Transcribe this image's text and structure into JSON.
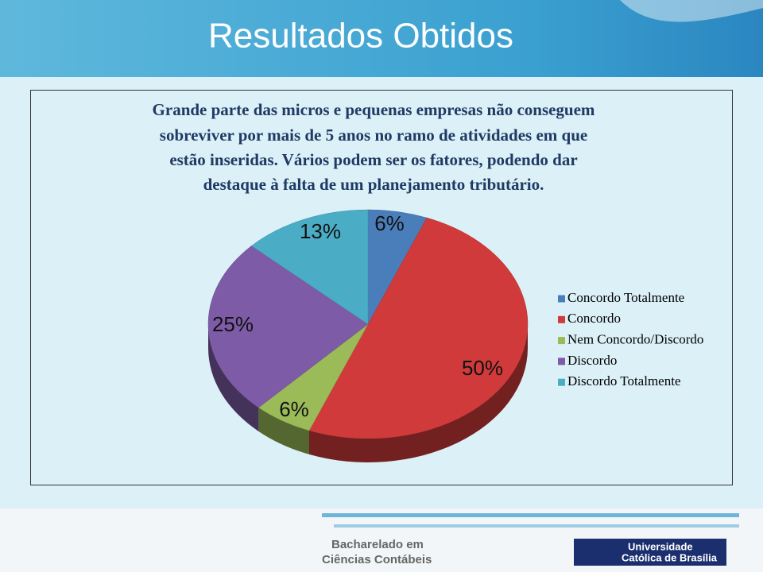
{
  "slide": {
    "title": "Resultados Obtidos",
    "text_lines": [
      "Grande parte das micros e pequenas empresas não conseguem",
      "sobreviver por mais de 5 anos no ramo de atividades em que",
      "estão inseridas. Vários podem ser os fatores, podendo dar",
      "destaque à falta de um planejamento tributário."
    ]
  },
  "chart_data": {
    "type": "pie",
    "categories": [
      "Concordo Totalmente",
      "Concordo",
      "Nem Concordo/Discordo",
      "Discordo",
      "Discordo Totalmente"
    ],
    "values": [
      6,
      50,
      6,
      25,
      13
    ],
    "value_labels": [
      "6%",
      "50%",
      "6%",
      "25%",
      "13%"
    ],
    "colors": [
      "#4a7ebb",
      "#d03a3a",
      "#9bbb59",
      "#7d5ba6",
      "#4bacc6"
    ],
    "legend": "right"
  },
  "footer": {
    "course": [
      "Bacharelado em",
      "Ciências Contábeis"
    ],
    "university": [
      "Universidade",
      "Católica de Brasília"
    ]
  }
}
